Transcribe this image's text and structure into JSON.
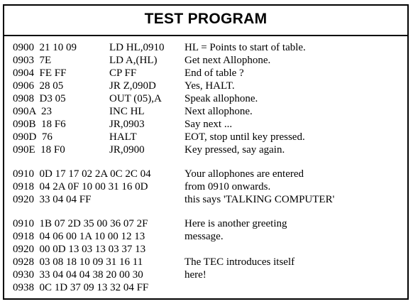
{
  "title": "TEST PROGRAM",
  "program": [
    {
      "code": "0900  21 10 09",
      "asm": "LD HL,0910",
      "comment": "HL = Points to start of table."
    },
    {
      "code": "0903  7E",
      "asm": "LD A,(HL)",
      "comment": "Get next Allophone."
    },
    {
      "code": "0904  FE FF",
      "asm": "CP FF",
      "comment": "End of table ?"
    },
    {
      "code": "0906  28 05",
      "asm": "JR Z,090D",
      "comment": "Yes, HALT."
    },
    {
      "code": "0908  D3 05",
      "asm": "OUT (05),A",
      "comment": "Speak allophone."
    },
    {
      "code": "090A  23",
      "asm": "INC HL",
      "comment": "Next allophone."
    },
    {
      "code": "090B  18 F6",
      "asm": "JR,0903",
      "comment": "Say next ..."
    },
    {
      "code": "090D  76",
      "asm": "HALT",
      "comment": "EOT, stop until key pressed."
    },
    {
      "code": "090E  18 F0",
      "asm": "JR,0900",
      "comment": "Key pressed, say again."
    }
  ],
  "table1": [
    {
      "code": "0910  0D 17 17 02 2A 0C 2C 04",
      "comment": "Your allophones are entered"
    },
    {
      "code": "0918  04 2A 0F 10 00 31 16 0D",
      "comment": "from 0910 onwards."
    },
    {
      "code": "0920  33 04 04 FF",
      "comment": "this says 'TALKING COMPUTER'"
    }
  ],
  "table2": [
    {
      "code": "0910  1B 07 2D 35 00 36 07 2F",
      "comment": "Here is another greeting"
    },
    {
      "code": "0918  04 06 00 1A 10 00 12 13",
      "comment": "message."
    },
    {
      "code": "0920  00 0D 13 03 13 03 37 13",
      "comment": ""
    },
    {
      "code": "0928  03 08 18 10 09 31 16 11",
      "comment": "The TEC introduces itself"
    },
    {
      "code": "0930  33 04 04 04 38 20 00 30",
      "comment": "here!"
    },
    {
      "code": "0938  0C 1D 37 09 13 32 04 FF",
      "comment": ""
    }
  ]
}
